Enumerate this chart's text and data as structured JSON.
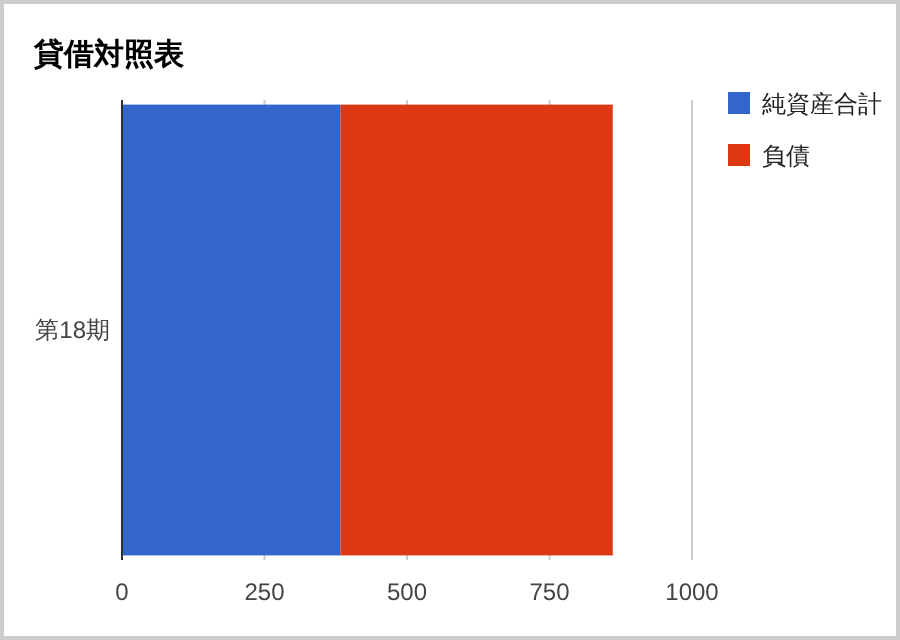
{
  "chart_data": {
    "type": "bar",
    "title": "貸借対照表",
    "orientation": "horizontal",
    "stacked": true,
    "categories": [
      "第18期"
    ],
    "series": [
      {
        "name": "純資産合計",
        "color": "#3366cc",
        "values": [
          383
        ]
      },
      {
        "name": "負債",
        "color": "#dc3912",
        "values": [
          478
        ]
      }
    ],
    "xlim": [
      0,
      1000
    ],
    "xticks": [
      0,
      250,
      500,
      750,
      1000
    ],
    "grid": "x",
    "legend": "top right"
  }
}
